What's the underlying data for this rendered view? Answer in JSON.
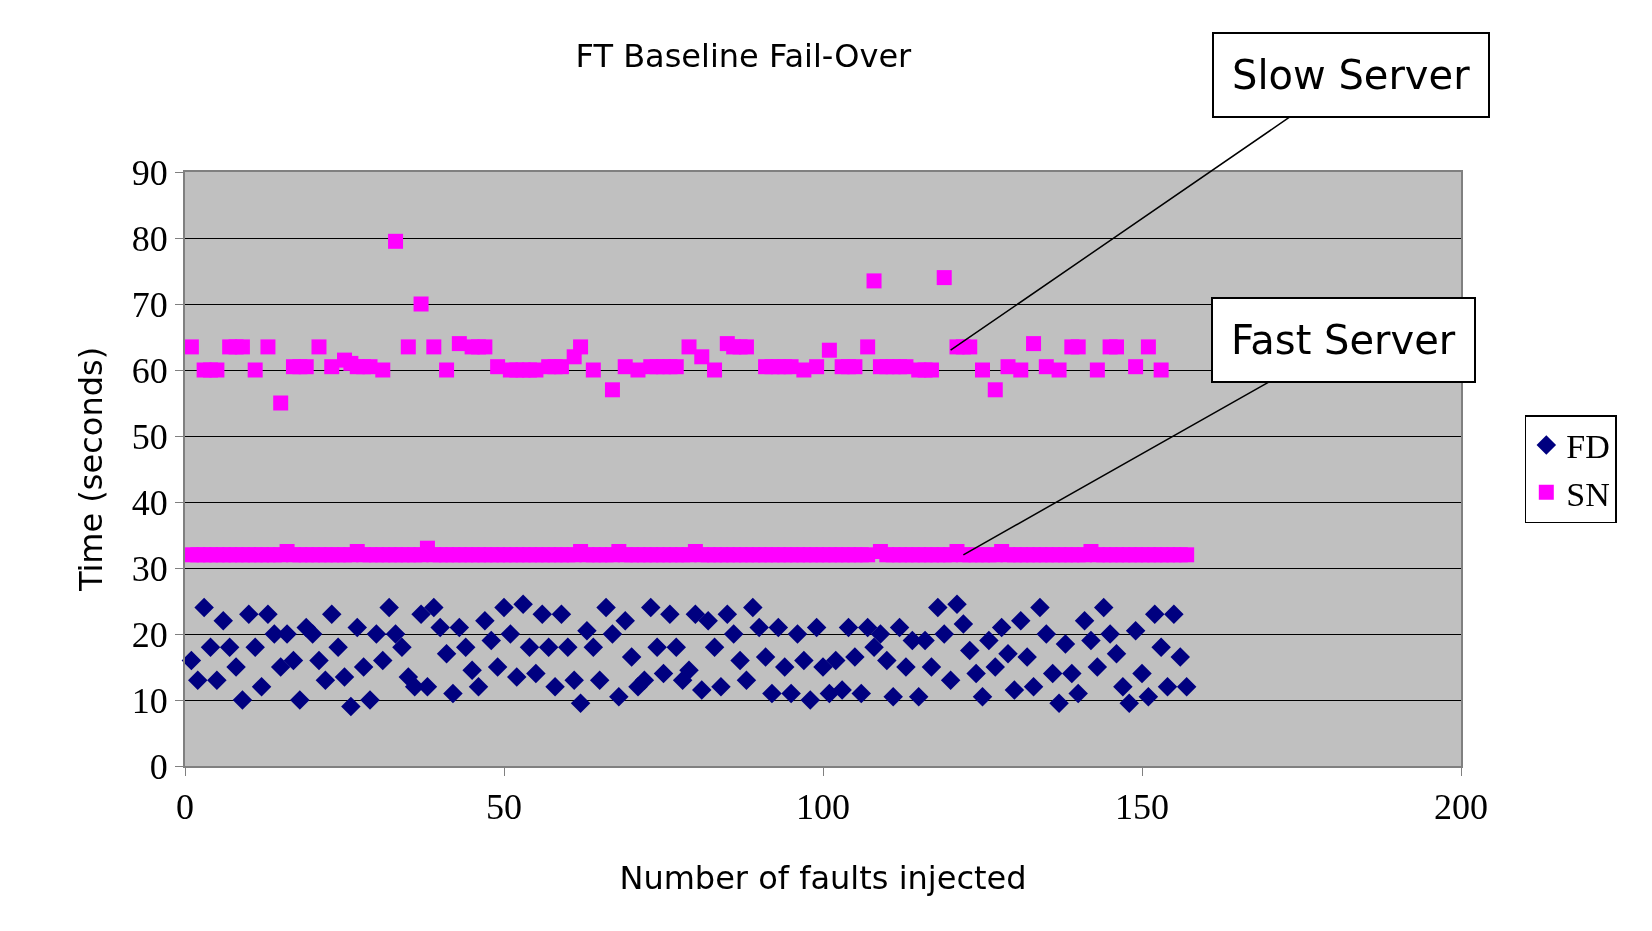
{
  "chart_data": {
    "type": "scatter",
    "title": "FT Baseline Fail-Over",
    "xlabel": "Number of faults injected",
    "ylabel": "Time (seconds)",
    "xlim": [
      0,
      200
    ],
    "xticks": [
      0,
      50,
      100,
      150,
      200
    ],
    "ylim": [
      0,
      90
    ],
    "yticks": [
      0,
      10,
      20,
      30,
      40,
      50,
      60,
      70,
      80,
      90
    ],
    "grid": "y",
    "legend": "right",
    "annotations": [
      {
        "text": "Slow Server",
        "x": 120,
        "y": 63
      },
      {
        "text": "Fast Server",
        "x": 122,
        "y": 32
      }
    ],
    "series": [
      {
        "name": "FD",
        "color": "#000080",
        "marker": "diamond",
        "x": [
          1,
          2,
          3,
          4,
          5,
          6,
          7,
          8,
          9,
          10,
          11,
          12,
          13,
          14,
          15,
          16,
          17,
          18,
          19,
          20,
          21,
          22,
          23,
          24,
          25,
          26,
          27,
          28,
          29,
          30,
          31,
          32,
          33,
          34,
          35,
          36,
          37,
          38,
          39,
          40,
          41,
          42,
          43,
          44,
          45,
          46,
          47,
          48,
          49,
          50,
          51,
          52,
          53,
          54,
          55,
          56,
          57,
          58,
          59,
          60,
          61,
          62,
          63,
          64,
          65,
          66,
          67,
          68,
          69,
          70,
          71,
          72,
          73,
          74,
          75,
          76,
          77,
          78,
          79,
          80,
          81,
          82,
          83,
          84,
          85,
          86,
          87,
          88,
          89,
          90,
          91,
          92,
          93,
          94,
          95,
          96,
          97,
          98,
          99,
          100,
          101,
          102,
          103,
          104,
          105,
          106,
          107,
          108,
          109,
          110,
          111,
          112,
          113,
          114,
          115,
          116,
          117,
          118,
          119,
          120,
          121,
          122,
          123,
          124,
          125,
          126,
          127,
          128,
          129,
          130,
          131,
          132,
          133,
          134,
          135,
          136,
          137,
          138,
          139,
          140,
          141,
          142,
          143,
          144,
          145,
          146,
          147,
          148,
          149,
          150,
          151,
          152,
          153,
          154,
          155,
          156,
          157
        ],
        "values": [
          16,
          13,
          24,
          18,
          13,
          22,
          18,
          15,
          10,
          23,
          18,
          12,
          23,
          20,
          15,
          20,
          16,
          10,
          21,
          20,
          16,
          13,
          23,
          18,
          13.5,
          9,
          21,
          15,
          10,
          20,
          16,
          24,
          20,
          18,
          13.5,
          12,
          23,
          12,
          24,
          21,
          17,
          11,
          21,
          18,
          14.5,
          12,
          22,
          19,
          15,
          24,
          20,
          13.5,
          24.5,
          18,
          14,
          23,
          18,
          12,
          23,
          18,
          13,
          9.5,
          20.5,
          18,
          13,
          24,
          20,
          10.5,
          22,
          16.5,
          12,
          13,
          24,
          18,
          14,
          23,
          18,
          13,
          14.5,
          23,
          11.5,
          22,
          18,
          12,
          23,
          20,
          16,
          13,
          24,
          21,
          16.5,
          11,
          21,
          15,
          11,
          20,
          16,
          10,
          21,
          15,
          11,
          16,
          11.5,
          21,
          16.5,
          11,
          21,
          18,
          20,
          16,
          10.5,
          21,
          15,
          19,
          10.5,
          19,
          15,
          24,
          20,
          13,
          24.5,
          21.5,
          17.5,
          14,
          10.5,
          19,
          15,
          21,
          17,
          11.5,
          22,
          16.5,
          12,
          24,
          20,
          14,
          9.5,
          18.5,
          14,
          11,
          22,
          19,
          15,
          24,
          20,
          17,
          12,
          9.5,
          20.5,
          14,
          10.5,
          23,
          18,
          12,
          23,
          16.5,
          12
        ]
      },
      {
        "name": "SN",
        "color": "#ff00ff",
        "marker": "square",
        "x": [
          1,
          3,
          4,
          5,
          7,
          8,
          9,
          11,
          13,
          15,
          17,
          18,
          19,
          21,
          23,
          25,
          26,
          27,
          28,
          29,
          31,
          33,
          35,
          37,
          39,
          41,
          43,
          45,
          46,
          47,
          49,
          51,
          52,
          53,
          54,
          55,
          57,
          58,
          59,
          61,
          62,
          64,
          67,
          69,
          71,
          73,
          74,
          75,
          76,
          77,
          79,
          81,
          83,
          85,
          86,
          87,
          88,
          91,
          92,
          93,
          94,
          95,
          97,
          99,
          101,
          103,
          104,
          105,
          107,
          108,
          109,
          110,
          111,
          112,
          113,
          115,
          116,
          117,
          119,
          121,
          122,
          123,
          125,
          127,
          129,
          131,
          133,
          135,
          137,
          139,
          140,
          143,
          145,
          146,
          149,
          151,
          153,
          1,
          2,
          3,
          4,
          5,
          6,
          7,
          8,
          9,
          10,
          11,
          12,
          13,
          14,
          15,
          16,
          17,
          18,
          19,
          20,
          21,
          22,
          23,
          24,
          25,
          26,
          27,
          28,
          29,
          30,
          31,
          32,
          33,
          34,
          35,
          36,
          37,
          38,
          39,
          40,
          41,
          42,
          43,
          44,
          45,
          46,
          47,
          48,
          49,
          50,
          51,
          52,
          53,
          54,
          55,
          56,
          57,
          58,
          59,
          60,
          61,
          62,
          63,
          64,
          65,
          66,
          67,
          68,
          69,
          70,
          71,
          72,
          73,
          74,
          75,
          76,
          77,
          78,
          79,
          80,
          81,
          82,
          83,
          84,
          85,
          86,
          87,
          88,
          89,
          90,
          91,
          92,
          93,
          94,
          95,
          96,
          97,
          98,
          99,
          100,
          101,
          102,
          103,
          104,
          105,
          106,
          107,
          109,
          110,
          111,
          112,
          113,
          114,
          115,
          116,
          117,
          118,
          119,
          120,
          121,
          122,
          123,
          124,
          125,
          126,
          127,
          128,
          129,
          130,
          131,
          132,
          133,
          134,
          135,
          136,
          137,
          138,
          139,
          140,
          141,
          142,
          143,
          144,
          145,
          146,
          147,
          148,
          149,
          150,
          151,
          152,
          153,
          154,
          155,
          156,
          157
        ],
        "values": [
          63.5,
          60,
          60,
          60,
          63.5,
          63.5,
          63.5,
          60,
          63.5,
          55,
          60.5,
          60.5,
          60.5,
          63.5,
          60.5,
          61.5,
          61,
          60.5,
          60.5,
          60.5,
          60,
          79.5,
          63.5,
          70,
          63.5,
          60,
          64,
          63.5,
          63.5,
          63.5,
          60.5,
          60,
          60,
          60,
          60,
          60,
          60.5,
          60.5,
          60.5,
          62,
          63.5,
          60,
          57,
          60.5,
          60,
          60.5,
          60.5,
          60.5,
          60.5,
          60.5,
          63.5,
          62,
          60,
          64,
          63.5,
          63.5,
          63.5,
          60.5,
          60.5,
          60.5,
          60.5,
          60.5,
          60,
          60.5,
          63,
          60.5,
          60.5,
          60.5,
          63.5,
          73.5,
          60.5,
          60.5,
          60.5,
          60.5,
          60.5,
          60,
          60,
          60,
          74,
          63.5,
          63.5,
          63.5,
          60,
          57,
          60.5,
          60,
          64,
          60.5,
          60,
          63.5,
          63.5,
          60,
          63.5,
          63.5,
          60.5,
          63.5,
          60,
          32,
          32,
          32,
          32,
          32,
          32,
          32,
          32,
          32,
          32,
          32,
          32,
          32,
          32,
          32,
          32.5,
          32,
          32,
          32,
          32,
          32,
          32,
          32,
          32,
          32,
          32,
          32.5,
          32,
          32,
          32,
          32,
          32,
          32,
          32,
          32,
          32,
          32,
          33,
          32,
          32,
          32,
          32,
          32,
          32,
          32,
          32,
          32,
          32,
          32,
          32,
          32,
          32,
          32,
          32,
          32,
          32,
          32,
          32,
          32,
          32,
          32,
          32.5,
          32,
          32,
          32,
          32,
          32,
          32.5,
          32,
          32,
          32,
          32,
          32,
          32,
          32,
          32,
          32,
          32,
          32,
          32.5,
          32,
          32,
          32,
          32,
          32,
          32,
          32,
          32,
          32,
          32,
          32,
          32,
          32,
          32,
          32,
          32,
          32,
          32,
          32,
          32,
          32,
          32,
          32,
          32,
          32,
          32,
          32,
          32.5,
          32,
          32,
          32,
          32,
          32,
          32,
          32,
          32,
          32,
          32,
          32,
          32.5,
          32,
          32,
          32,
          32,
          32,
          32,
          32.5,
          32,
          32,
          32,
          32,
          32,
          32,
          32,
          32,
          32,
          32,
          32,
          32,
          32,
          32.5,
          32,
          32,
          32,
          32,
          32,
          32,
          32,
          32,
          32,
          32,
          32,
          32,
          32,
          32,
          32
        ]
      }
    ]
  }
}
